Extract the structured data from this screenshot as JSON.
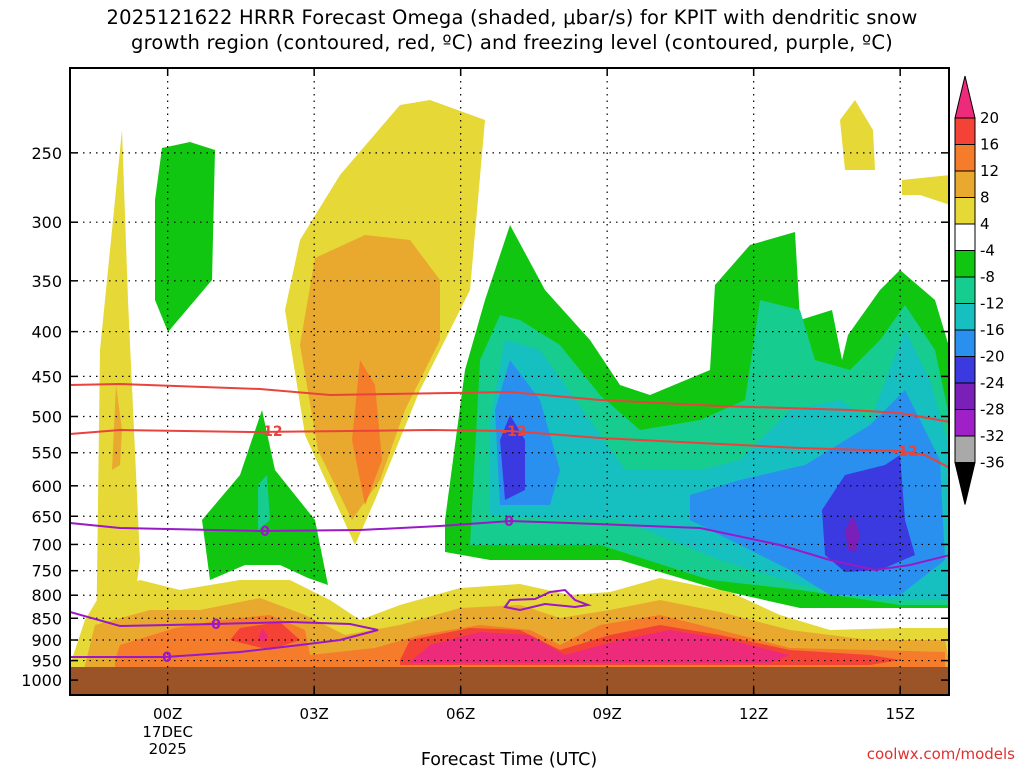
{
  "title_line1": "2025121622 HRRR Forecast Omega (shaded, μbar/s) for KPIT with dendritic snow",
  "title_line2": "growth region (contoured, red, ºC) and freezing level (contoured, purple, ºC)",
  "credit": "coolwx.com/models",
  "chart_data": {
    "type": "heatmap",
    "title": "2025121622 HRRR Forecast Omega (shaded, μbar/s) for KPIT with dendritic snow growth region (contoured, red, ºC) and freezing level (contoured, purple, ºC)",
    "xlabel": "Forecast Time (UTC)",
    "x_range_hours": [
      -2,
      16
    ],
    "x_ticks": [
      {
        "hour": 0,
        "label": "00Z",
        "sub": [
          "17DEC",
          "2025"
        ]
      },
      {
        "hour": 3,
        "label": "03Z"
      },
      {
        "hour": 6,
        "label": "06Z"
      },
      {
        "hour": 9,
        "label": "09Z"
      },
      {
        "hour": 12,
        "label": "12Z"
      },
      {
        "hour": 15,
        "label": "15Z"
      }
    ],
    "y_ticks_hpa": [
      250,
      300,
      350,
      400,
      450,
      500,
      550,
      600,
      650,
      700,
      750,
      800,
      850,
      900,
      950,
      1000
    ],
    "ylim_hpa": [
      200,
      1040
    ],
    "y_scale": "log-pressure (inverted)",
    "grid": "dotted",
    "colorbar": {
      "labels": [
        "20",
        "16",
        "12",
        "8",
        "4",
        "-4",
        "-8",
        "-12",
        "-16",
        "-20",
        "-24",
        "-28",
        "-32",
        "-36"
      ],
      "colors": [
        "#ee2a7b",
        "#f44336",
        "#f57c2a",
        "#e8a92e",
        "#e6d837",
        "#ffffff",
        "#11c611",
        "#16cc8e",
        "#16bfc0",
        "#2a90f0",
        "#3a3ae0",
        "#7a1fb8",
        "#a020c8",
        "#a9a9a9",
        "#000000"
      ]
    },
    "contour_labels": {
      "dgz_celsius": [
        "-12",
        "-12",
        "-12"
      ],
      "freezing_celsius": [
        "0",
        "0",
        "0",
        "0"
      ]
    }
  }
}
